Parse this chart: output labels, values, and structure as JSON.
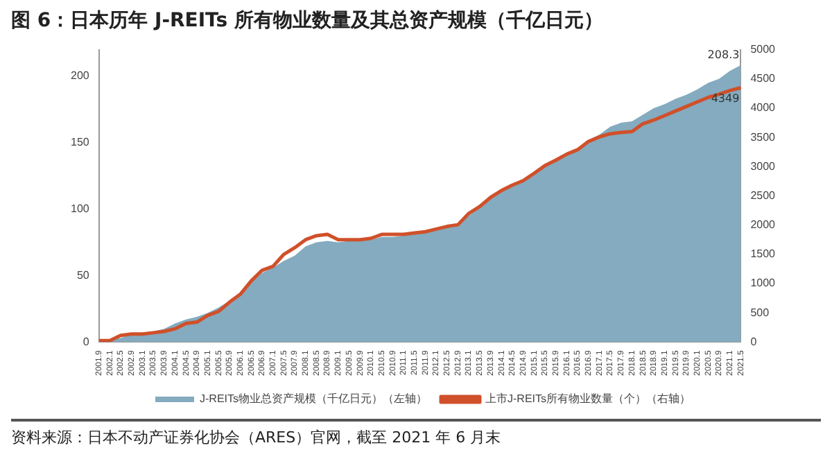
{
  "chart_data": {
    "type": "area",
    "title": "图 6：日本历年 J-REITs 所有物业数量及其总资产规模（千亿日元）",
    "annotations": [
      "资料来源：日本不动产证券化协会（ARES）官网，截至 2021 年 6 月末"
    ],
    "categories": [
      "2001.9",
      "2002.1",
      "2002.5",
      "2002.9",
      "2003.1",
      "2003.5",
      "2003.9",
      "2004.1",
      "2004.5",
      "2004.9",
      "2005.1",
      "2005.5",
      "2005.9",
      "2006.1",
      "2006.5",
      "2006.9",
      "2007.1",
      "2007.5",
      "2007.9",
      "2008.1",
      "2008.5",
      "2008.9",
      "2009.1",
      "2009.5",
      "2009.9",
      "2010.1",
      "2010.5",
      "2010.9",
      "2011.1",
      "2011.5",
      "2011.9",
      "2012.1",
      "2012.5",
      "2012.9",
      "2013.1",
      "2013.5",
      "2013.9",
      "2014.1",
      "2014.5",
      "2014.9",
      "2015.1",
      "2015.5",
      "2015.9",
      "2016.1",
      "2016.5",
      "2016.9",
      "2017.1",
      "2017.5",
      "2017.9",
      "2018.1",
      "2018.5",
      "2018.9",
      "2019.1",
      "2019.5",
      "2019.9",
      "2020.1",
      "2020.5",
      "2020.9",
      "2021.1",
      "2021.5"
    ],
    "series": [
      {
        "name": "J-REITs物业总资产规模（千亿日元）（左轴）",
        "color": "#84abbf",
        "values": [
          2,
          2,
          3,
          6,
          7,
          8,
          10,
          14,
          17,
          19,
          22,
          26,
          31,
          36,
          45,
          52,
          56,
          61,
          65,
          72,
          75,
          76,
          75,
          76,
          76,
          77,
          79,
          79,
          80,
          81,
          82,
          84,
          86,
          89,
          95,
          102,
          109,
          113,
          118,
          121,
          128,
          134,
          137,
          141,
          145,
          152,
          156,
          162,
          165,
          166,
          171,
          176,
          179,
          183,
          186,
          190,
          195,
          198,
          204,
          208.3
        ],
        "value_labels": [
          null,
          null,
          null,
          null,
          null,
          null,
          null,
          null,
          null,
          null,
          null,
          null,
          null,
          null,
          null,
          null,
          null,
          null,
          null,
          null,
          null,
          null,
          null,
          null,
          null,
          null,
          null,
          null,
          null,
          null,
          null,
          null,
          null,
          null,
          null,
          null,
          null,
          null,
          null,
          null,
          null,
          null,
          null,
          null,
          null,
          null,
          null,
          null,
          null,
          null,
          null,
          null,
          null,
          null,
          null,
          null,
          null,
          null,
          null,
          "208.3"
        ]
      },
      {
        "name": "上市J-REITs所有物业数量（个）（右轴）",
        "type": "line",
        "axis": "y2",
        "color": "#d0502a",
        "values": [
          23,
          23,
          114,
          136,
          136,
          159,
          182,
          227,
          318,
          341,
          455,
          523,
          682,
          818,
          1045,
          1227,
          1295,
          1500,
          1614,
          1750,
          1818,
          1841,
          1750,
          1750,
          1750,
          1773,
          1841,
          1841,
          1841,
          1864,
          1886,
          1932,
          1977,
          2006,
          2200,
          2317,
          2473,
          2590,
          2683,
          2760,
          2885,
          3017,
          3110,
          3212,
          3289,
          3429,
          3507,
          3561,
          3585,
          3600,
          3732,
          3795,
          3872,
          3950,
          4028,
          4106,
          4183,
          4238,
          4300,
          4349
        ],
        "value_labels": [
          null,
          null,
          null,
          null,
          null,
          null,
          null,
          null,
          null,
          null,
          null,
          null,
          null,
          null,
          null,
          null,
          null,
          null,
          null,
          null,
          null,
          null,
          null,
          null,
          null,
          null,
          null,
          null,
          null,
          null,
          null,
          null,
          null,
          null,
          null,
          null,
          null,
          null,
          null,
          null,
          null,
          null,
          null,
          null,
          null,
          null,
          null,
          null,
          null,
          null,
          null,
          null,
          null,
          null,
          null,
          null,
          null,
          null,
          null,
          "4349"
        ]
      }
    ],
    "ylim": [
      0,
      220
    ],
    "yticks": [
      0,
      50,
      100,
      150,
      200
    ],
    "y2lim": [
      0,
      5000
    ],
    "y2ticks": [
      0,
      500,
      1000,
      1500,
      2000,
      2500,
      3000,
      3500,
      4000,
      4500,
      5000
    ],
    "grid": false,
    "legend": "bottom",
    "marker": "none",
    "line_style": "solid"
  }
}
